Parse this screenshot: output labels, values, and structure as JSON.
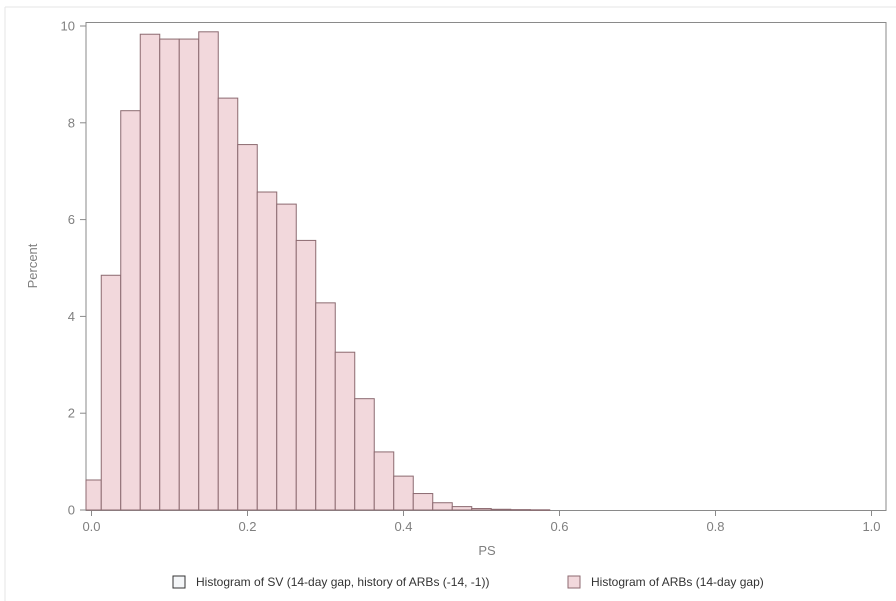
{
  "chart_data": {
    "type": "bar",
    "title": "",
    "xlabel": "PS",
    "ylabel": "Percent",
    "xlim": [
      0,
      1.0
    ],
    "ylim": [
      0,
      10
    ],
    "grid": false,
    "legend_position": "bottom",
    "x_ticks": [
      "0.0",
      "0.2",
      "0.4",
      "0.6",
      "0.8",
      "1.0"
    ],
    "y_ticks": [
      "0",
      "2",
      "4",
      "6",
      "8",
      "10"
    ],
    "bin_width": 0.025,
    "bin_start": -0.0125,
    "series": [
      {
        "name": "Histogram of SV (14-day gap, history of ARBs (-14, -1))",
        "fill": "#f4f6f8",
        "stroke": "#333333",
        "values": []
      },
      {
        "name": "Histogram of ARBs (14-day gap)",
        "fill": "#f2d8dc",
        "stroke": "#8c6a70",
        "values": [
          0.62,
          4.85,
          8.25,
          9.83,
          9.73,
          9.73,
          9.88,
          8.51,
          7.55,
          6.57,
          6.32,
          5.57,
          4.28,
          3.26,
          2.3,
          1.2,
          0.7,
          0.34,
          0.15,
          0.07,
          0.03,
          0.015,
          0.008,
          0.004
        ]
      }
    ]
  }
}
